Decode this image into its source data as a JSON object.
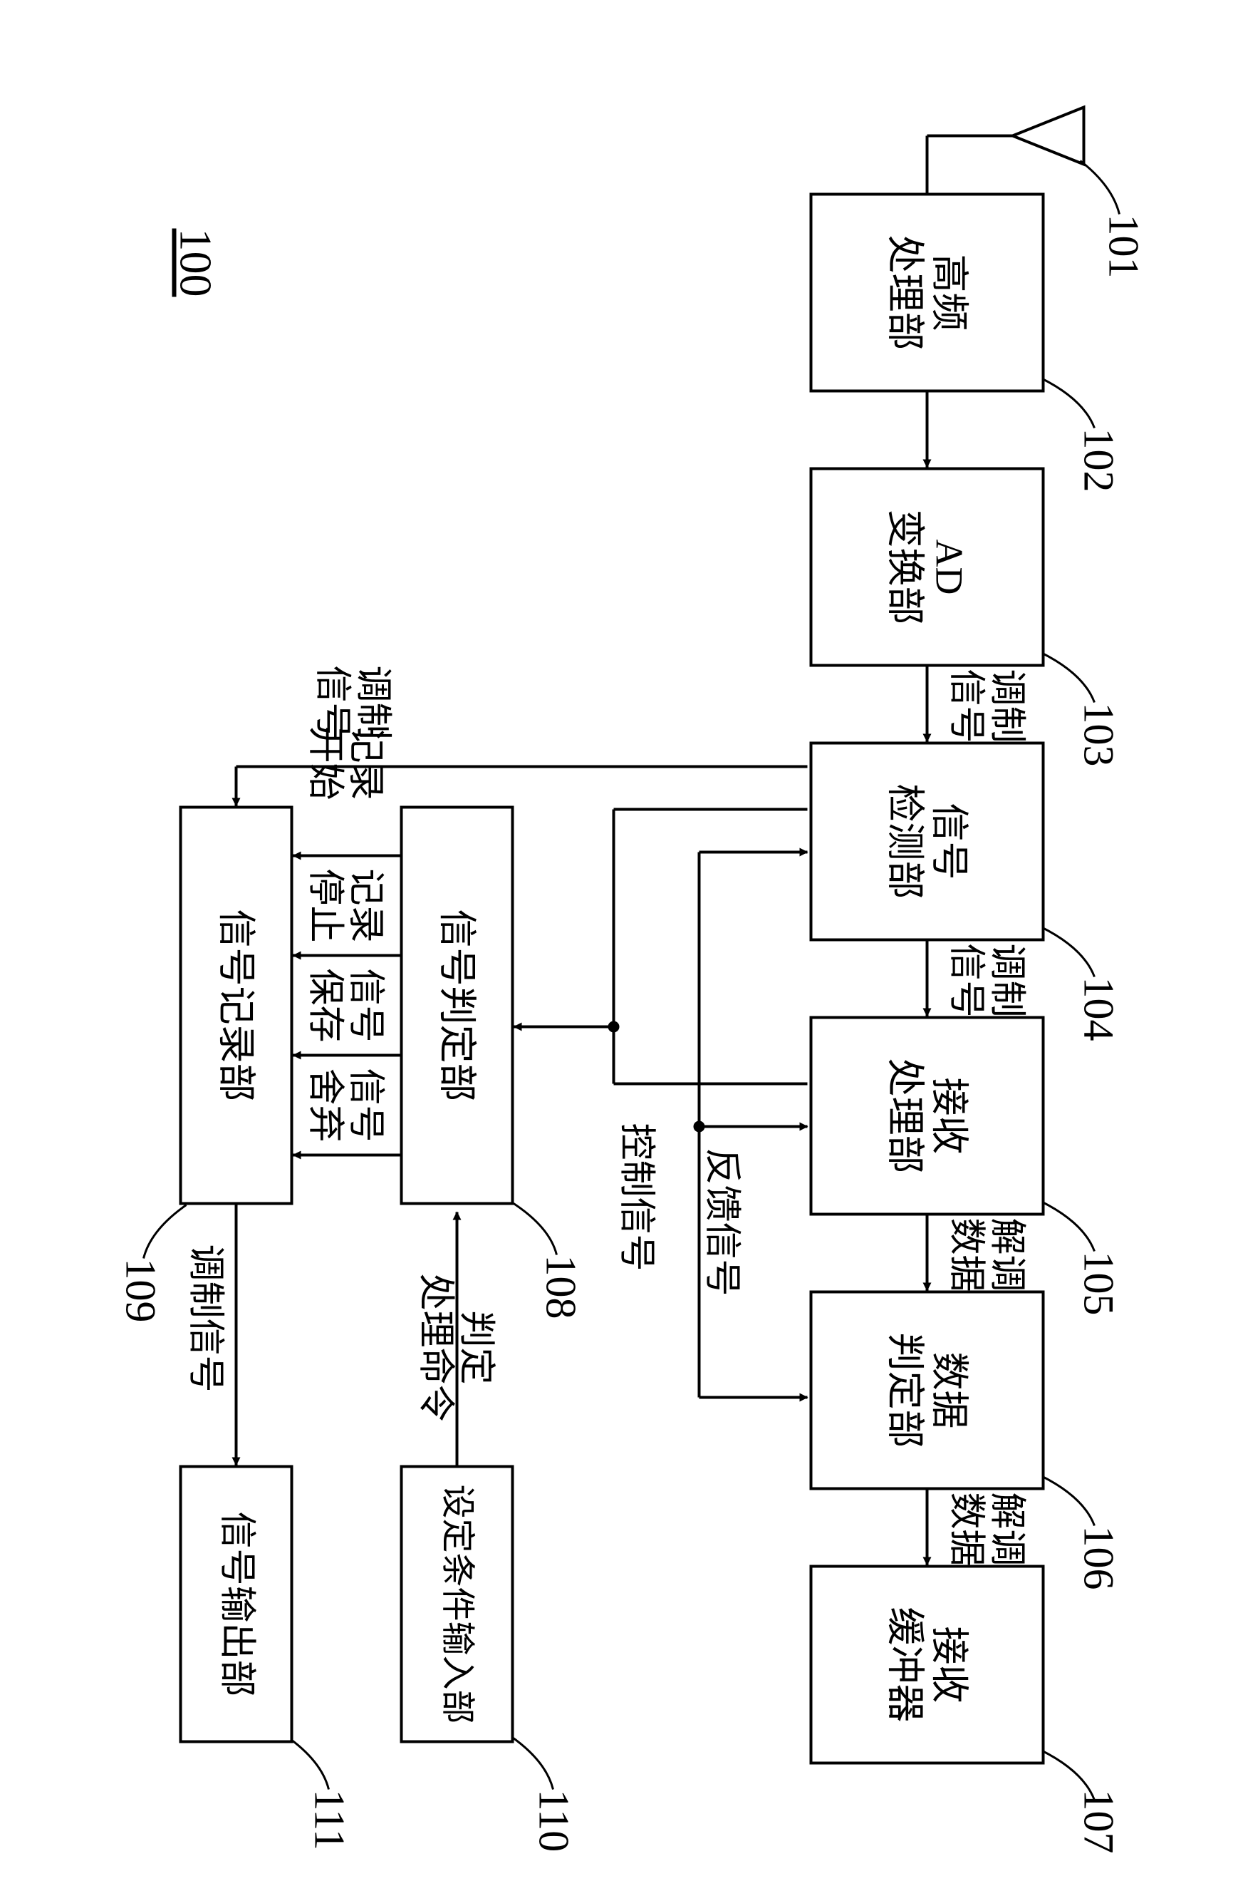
{
  "system_ref": "100",
  "nodes": {
    "n101": {
      "ref": "101",
      "type": "antenna"
    },
    "n102": {
      "ref": "102",
      "label": "高频\n处理部"
    },
    "n103": {
      "ref": "103",
      "label": "AD\n变换部"
    },
    "n104": {
      "ref": "104",
      "label": "信号\n检测部"
    },
    "n105": {
      "ref": "105",
      "label": "接收\n处理部"
    },
    "n106": {
      "ref": "106",
      "label": "数据\n判定部"
    },
    "n107": {
      "ref": "107",
      "label": "接收\n缓冲器"
    },
    "n108": {
      "ref": "108",
      "label": "信号判定部"
    },
    "n109": {
      "ref": "109",
      "label": "信号记录部"
    },
    "n110": {
      "ref": "110",
      "label": "设定条件输入部"
    },
    "n111": {
      "ref": "111",
      "label": "信号输出部"
    }
  },
  "edge_labels": {
    "e103_104": "调制\n信号",
    "e104_105": "调制\n信号",
    "e105_106": "解调\n数据",
    "e106_107": "解调\n数据",
    "e104_109": "调制\n信号",
    "e109_111": "调制信号",
    "e110_108": "判定\n处理命令",
    "feedback": "反馈信号",
    "control": "控制信号",
    "cmd_start": "记录\n开始",
    "cmd_stop": "记录\n停止",
    "cmd_save": "信号\n保存",
    "cmd_drop": "信号\n舍弃"
  },
  "style": {
    "stroke": "#000000",
    "stroke_width": 4,
    "block_font_size": 54,
    "ref_font_size": 60,
    "edge_font_size": 52,
    "background": "#ffffff"
  }
}
